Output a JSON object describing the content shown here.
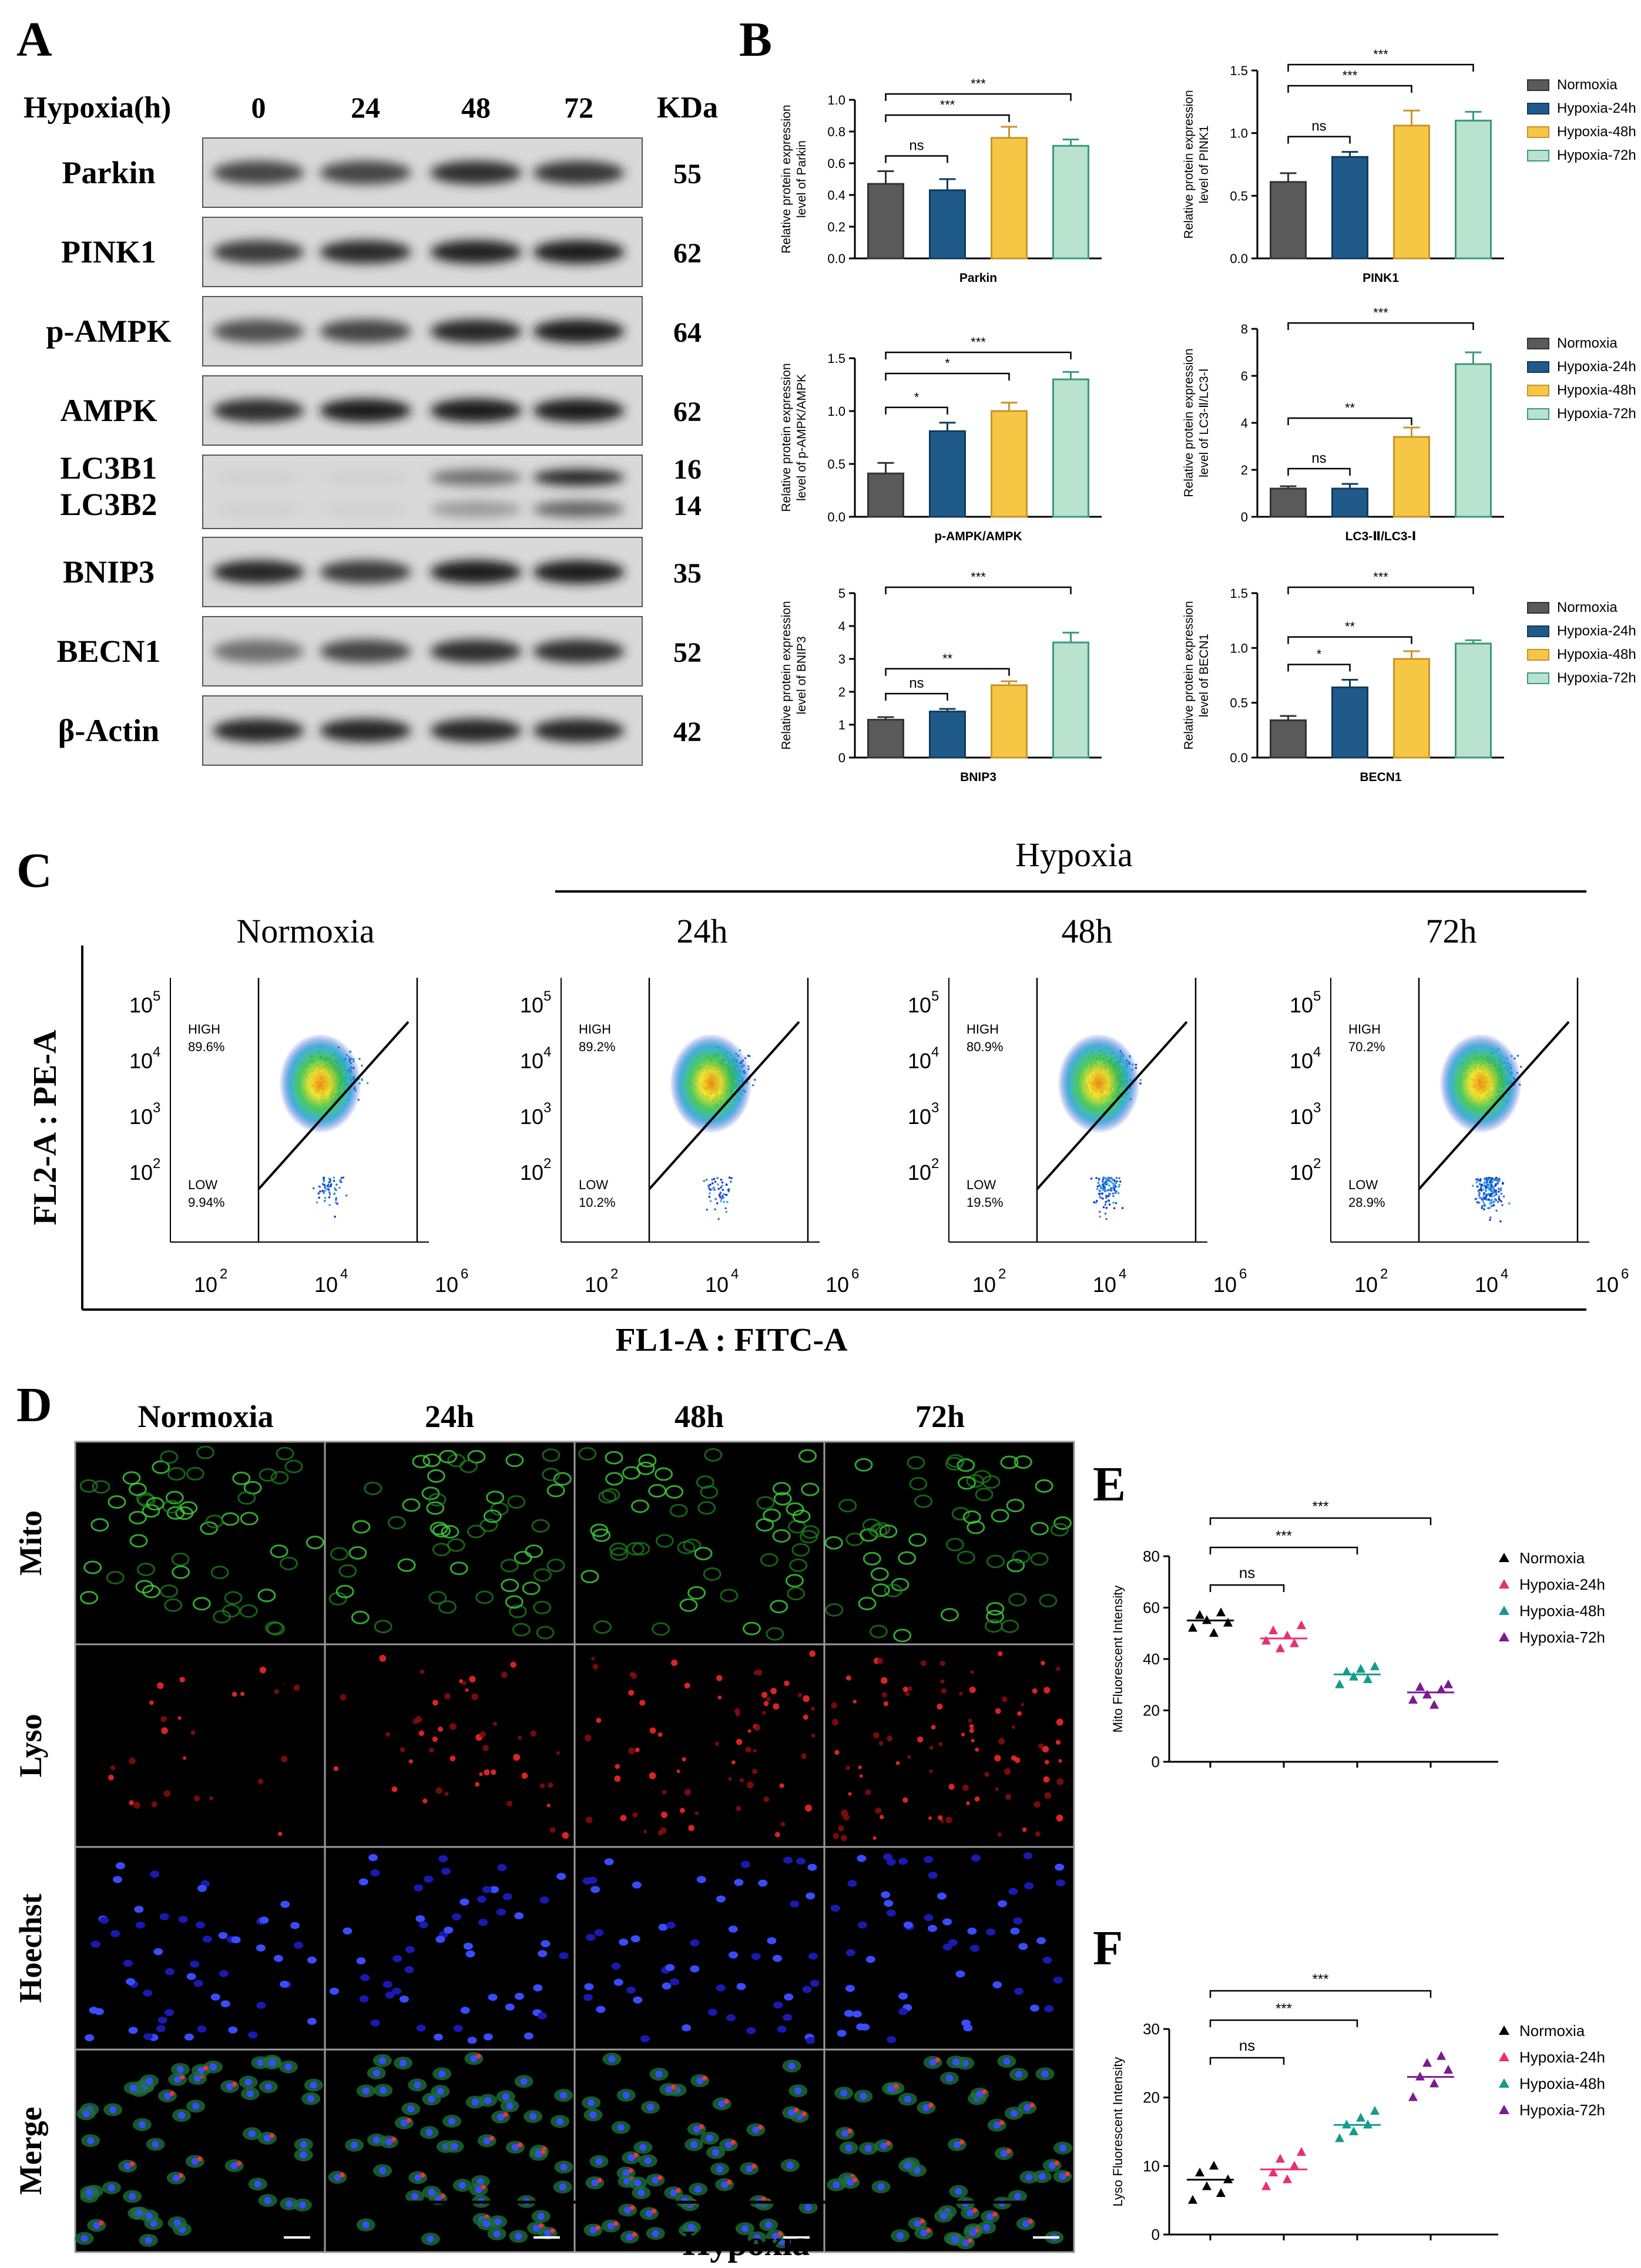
{
  "panel_labels": {
    "A": "A",
    "B": "B",
    "C": "C",
    "D": "D",
    "E": "E",
    "F": "F"
  },
  "western_blot": {
    "header_label": "Hypoxia(h)",
    "timepoints": [
      "0",
      "24",
      "48",
      "72"
    ],
    "kda_label": "KDa",
    "proteins": [
      {
        "name": "Parkin",
        "kda": "55",
        "intensity": [
          0.75,
          0.75,
          0.85,
          0.82
        ]
      },
      {
        "name": "PINK1",
        "kda": "62",
        "intensity": [
          0.8,
          0.88,
          0.92,
          0.95
        ]
      },
      {
        "name": "p-AMPK",
        "kda": "64",
        "intensity": [
          0.7,
          0.75,
          0.9,
          0.95
        ]
      },
      {
        "name": "AMPK",
        "kda": "62",
        "intensity": [
          0.85,
          0.95,
          0.95,
          0.95
        ]
      },
      {
        "name": "LC3B1",
        "kda": "16",
        "intensity": [
          0.1,
          0.1,
          0.55,
          0.9
        ]
      },
      {
        "name": "LC3B2",
        "kda": "14",
        "intensity": [
          0.1,
          0.1,
          0.35,
          0.6
        ]
      },
      {
        "name": "BNIP3",
        "kda": "35",
        "intensity": [
          0.9,
          0.8,
          0.95,
          0.95
        ]
      },
      {
        "name": "BECN1",
        "kda": "52",
        "intensity": [
          0.55,
          0.75,
          0.85,
          0.85
        ]
      },
      {
        "name": "β-Actin",
        "kda": "42",
        "intensity": [
          0.9,
          0.9,
          0.9,
          0.9
        ]
      }
    ]
  },
  "legend_entries": [
    "Normoxia",
    "Hypoxia-24h",
    "Hypoxia-48h",
    "Hypoxia-72h"
  ],
  "colors": {
    "bars": [
      "#5a5a5a",
      "#1f5a8a",
      "#f6c744",
      "#b9e2cf"
    ],
    "bar_edges": [
      "#333333",
      "#123a5a",
      "#c9932a",
      "#3a9a7a"
    ],
    "dots": [
      "#000000",
      "#e8306e",
      "#159b8e",
      "#7b1a91"
    ],
    "gate_line": "#000000"
  },
  "chart_data": [
    {
      "type": "bar",
      "id": "parkin",
      "title": "",
      "xlabel": "Parkin",
      "ylabel": "Relative protein expression level of Parkin",
      "categories": [
        "Normoxia",
        "Hypoxia-24h",
        "Hypoxia-48h",
        "Hypoxia-72h"
      ],
      "values": [
        0.47,
        0.43,
        0.76,
        0.71
      ],
      "errors": [
        0.08,
        0.07,
        0.07,
        0.04
      ],
      "ylim": [
        0,
        1.0
      ],
      "yticks": [
        "0.0",
        "0.2",
        "0.4",
        "0.6",
        "0.8",
        "1.0"
      ],
      "ytick_values": [
        0,
        0.2,
        0.4,
        0.6,
        0.8,
        1.0
      ],
      "comparisons": [
        {
          "from": 0,
          "to": 1,
          "label": "ns"
        },
        {
          "from": 0,
          "to": 2,
          "label": "***"
        },
        {
          "from": 0,
          "to": 3,
          "label": "***"
        }
      ]
    },
    {
      "type": "bar",
      "id": "pink1",
      "title": "",
      "xlabel": "PINK1",
      "ylabel": "Relative protein expression level of PINK1",
      "categories": [
        "Normoxia",
        "Hypoxia-24h",
        "Hypoxia-48h",
        "Hypoxia-72h"
      ],
      "values": [
        0.61,
        0.81,
        1.06,
        1.1
      ],
      "errors": [
        0.07,
        0.04,
        0.12,
        0.07
      ],
      "ylim": [
        0,
        1.5
      ],
      "yticks": [
        "0.0",
        "0.5",
        "1.0",
        "1.5"
      ],
      "ytick_values": [
        0,
        0.5,
        1.0,
        1.5
      ],
      "comparisons": [
        {
          "from": 0,
          "to": 1,
          "label": "ns"
        },
        {
          "from": 0,
          "to": 2,
          "label": "***"
        },
        {
          "from": 0,
          "to": 3,
          "label": "***"
        }
      ]
    },
    {
      "type": "bar",
      "id": "pampk",
      "title": "",
      "xlabel": "p-AMPK/AMPK",
      "ylabel": "Relative protein expression level of p-AMPK/AMPK",
      "categories": [
        "Normoxia",
        "Hypoxia-24h",
        "Hypoxia-48h",
        "Hypoxia-72h"
      ],
      "values": [
        0.41,
        0.81,
        1.0,
        1.3
      ],
      "errors": [
        0.1,
        0.08,
        0.08,
        0.07
      ],
      "ylim": [
        0,
        1.5
      ],
      "yticks": [
        "0.0",
        "0.5",
        "1.0",
        "1.5"
      ],
      "ytick_values": [
        0,
        0.5,
        1.0,
        1.5
      ],
      "comparisons": [
        {
          "from": 0,
          "to": 1,
          "label": "*"
        },
        {
          "from": 0,
          "to": 2,
          "label": "*"
        },
        {
          "from": 0,
          "to": 3,
          "label": "***"
        }
      ]
    },
    {
      "type": "bar",
      "id": "lc3",
      "title": "",
      "xlabel": "LC3-Ⅱ/LC3-Ⅰ",
      "ylabel": "Relative protein expression level of LC3-Ⅱ/LC3-Ⅰ",
      "categories": [
        "Normoxia",
        "Hypoxia-24h",
        "Hypoxia-48h",
        "Hypoxia-72h"
      ],
      "values": [
        1.2,
        1.2,
        3.4,
        6.5
      ],
      "errors": [
        0.1,
        0.2,
        0.4,
        0.5
      ],
      "ylim": [
        0,
        8
      ],
      "yticks": [
        "0",
        "2",
        "4",
        "6",
        "8"
      ],
      "ytick_values": [
        0,
        2,
        4,
        6,
        8
      ],
      "comparisons": [
        {
          "from": 0,
          "to": 1,
          "label": "ns"
        },
        {
          "from": 0,
          "to": 2,
          "label": "**"
        },
        {
          "from": 0,
          "to": 3,
          "label": "***"
        }
      ]
    },
    {
      "type": "bar",
      "id": "bnip3",
      "title": "",
      "xlabel": "BNIP3",
      "ylabel": "Relative protein expression level of BNIP3",
      "categories": [
        "Normoxia",
        "Hypoxia-24h",
        "Hypoxia-48h",
        "Hypoxia-72h"
      ],
      "values": [
        1.15,
        1.4,
        2.2,
        3.5
      ],
      "errors": [
        0.08,
        0.08,
        0.12,
        0.3
      ],
      "ylim": [
        0,
        5
      ],
      "yticks": [
        "0",
        "1",
        "2",
        "3",
        "4",
        "5"
      ],
      "ytick_values": [
        0,
        1,
        2,
        3,
        4,
        5
      ],
      "comparisons": [
        {
          "from": 0,
          "to": 1,
          "label": "ns"
        },
        {
          "from": 0,
          "to": 2,
          "label": "**"
        },
        {
          "from": 0,
          "to": 3,
          "label": "***"
        }
      ]
    },
    {
      "type": "bar",
      "id": "becn1",
      "title": "",
      "xlabel": "BECN1",
      "ylabel": "Relative protein expression level of BECN1",
      "categories": [
        "Normoxia",
        "Hypoxia-24h",
        "Hypoxia-48h",
        "Hypoxia-72h"
      ],
      "values": [
        0.34,
        0.64,
        0.9,
        1.04
      ],
      "errors": [
        0.04,
        0.07,
        0.07,
        0.03
      ],
      "ylim": [
        0,
        1.5
      ],
      "yticks": [
        "0.0",
        "0.5",
        "1.0",
        "1.5"
      ],
      "ytick_values": [
        0,
        0.5,
        1.0,
        1.5
      ],
      "comparisons": [
        {
          "from": 0,
          "to": 1,
          "label": "*"
        },
        {
          "from": 0,
          "to": 2,
          "label": "**"
        },
        {
          "from": 0,
          "to": 3,
          "label": "***"
        }
      ]
    },
    {
      "type": "scatter",
      "id": "mito",
      "title": "",
      "xlabel": "",
      "ylabel": "Mito Fluorescent Intensity",
      "categories": [
        "Normoxia",
        "Hypoxia-24h",
        "Hypoxia-48h",
        "Hypoxia-72h"
      ],
      "points": [
        [
          52,
          57,
          55,
          50,
          58,
          54
        ],
        [
          47,
          51,
          44,
          49,
          46,
          53
        ],
        [
          30,
          35,
          33,
          36,
          32,
          37
        ],
        [
          24,
          29,
          26,
          22,
          28,
          30
        ]
      ],
      "means": [
        55,
        48,
        34,
        27
      ],
      "ylim": [
        0,
        80
      ],
      "yticks": [
        "0",
        "20",
        "40",
        "60",
        "80"
      ],
      "ytick_values": [
        0,
        20,
        40,
        60,
        80
      ],
      "comparisons": [
        {
          "from": 0,
          "to": 1,
          "label": "ns"
        },
        {
          "from": 0,
          "to": 2,
          "label": "***"
        },
        {
          "from": 0,
          "to": 3,
          "label": "***"
        }
      ]
    },
    {
      "type": "scatter",
      "id": "lyso",
      "title": "",
      "xlabel": "",
      "ylabel": "Lyso Fluorescent Intensity",
      "categories": [
        "Normoxia",
        "Hypoxia-24h",
        "Hypoxia-48h",
        "Hypoxia-72h"
      ],
      "points": [
        [
          5,
          9,
          7,
          10,
          6,
          8
        ],
        [
          7,
          9,
          11,
          8,
          10,
          12
        ],
        [
          14,
          16,
          15,
          17,
          16,
          18
        ],
        [
          20,
          23,
          25,
          22,
          26,
          24
        ]
      ],
      "means": [
        8,
        9.5,
        16,
        23
      ],
      "ylim": [
        0,
        30
      ],
      "yticks": [
        "0",
        "10",
        "20",
        "30"
      ],
      "ytick_values": [
        0,
        10,
        20,
        30
      ],
      "comparisons": [
        {
          "from": 0,
          "to": 1,
          "label": "ns"
        },
        {
          "from": 0,
          "to": 2,
          "label": "***"
        },
        {
          "from": 0,
          "to": 3,
          "label": "***"
        }
      ]
    }
  ],
  "flow": {
    "hypoxia_label": "Hypoxia",
    "group_titles": [
      "Normoxia",
      "24h",
      "48h",
      "72h"
    ],
    "y_axis_label": "FL2-A : PE-A",
    "x_axis_label": "FL1-A : FITC-A",
    "high_label": "HIGH",
    "low_label": "LOW",
    "high_values": [
      "89.6%",
      "89.2%",
      "80.9%",
      "70.2%"
    ],
    "low_values": [
      "9.94%",
      "10.2%",
      "19.5%",
      "28.9%"
    ],
    "y_ticks": [
      "10",
      "10",
      "10",
      "10",
      "10"
    ],
    "y_exps": [
      "5",
      "4",
      "3",
      "2",
      ""
    ],
    "x_ticks": [
      "10",
      "10",
      "10"
    ],
    "x_exps": [
      "2",
      "4",
      "6"
    ]
  },
  "microscopy": {
    "column_titles": [
      "Normoxia",
      "24h",
      "48h",
      "72h"
    ],
    "row_labels": [
      "Mito",
      "Lyso",
      "Hoechst",
      "Merge"
    ],
    "hypoxia_label": "Hypoxia"
  }
}
